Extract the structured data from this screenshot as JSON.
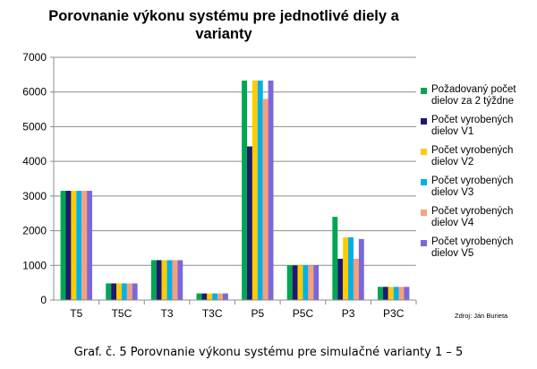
{
  "chart_data": {
    "type": "bar",
    "title": "Porovnanie výkonu systému pre jednotlivé diely a varianty",
    "xlabel": "",
    "ylabel": "",
    "ylim": [
      0,
      7000
    ],
    "yticks": [
      0,
      1000,
      2000,
      3000,
      4000,
      5000,
      6000,
      7000
    ],
    "grid": true,
    "legend_position": "right",
    "categories": [
      "T5",
      "T5C",
      "T3",
      "T3C",
      "P5",
      "P5C",
      "P3",
      "P3C"
    ],
    "series": [
      {
        "name": "Požadovaný počet dielov za 2 týždne",
        "color": "#00a651",
        "values": [
          3150,
          480,
          1150,
          190,
          6330,
          1000,
          2400,
          380
        ]
      },
      {
        "name": "Počet vyrobených dielov V1",
        "color": "#1f1a6e",
        "values": [
          3150,
          480,
          1150,
          190,
          4430,
          1000,
          1190,
          380
        ]
      },
      {
        "name": "Počet vyrobených dielov V2",
        "color": "#ffcc00",
        "values": [
          3150,
          480,
          1150,
          190,
          6330,
          1000,
          1810,
          380
        ]
      },
      {
        "name": "Počet vyrobených dielov V3",
        "color": "#00b0e8",
        "values": [
          3150,
          480,
          1150,
          190,
          6330,
          1000,
          1810,
          380
        ]
      },
      {
        "name": "Počet vyrobených dielov V4",
        "color": "#f7a07a",
        "values": [
          3150,
          480,
          1150,
          190,
          5800,
          1000,
          1190,
          380
        ]
      },
      {
        "name": "Počet vyrobených dielov V5",
        "color": "#7b68d8",
        "values": [
          3150,
          480,
          1150,
          190,
          6330,
          1000,
          1760,
          380
        ]
      }
    ]
  },
  "source_note": "Zdroj: Ján Burieta",
  "caption": "Graf. č. 5 Porovnanie výkonu systému pre simulačné varianty 1 – 5"
}
